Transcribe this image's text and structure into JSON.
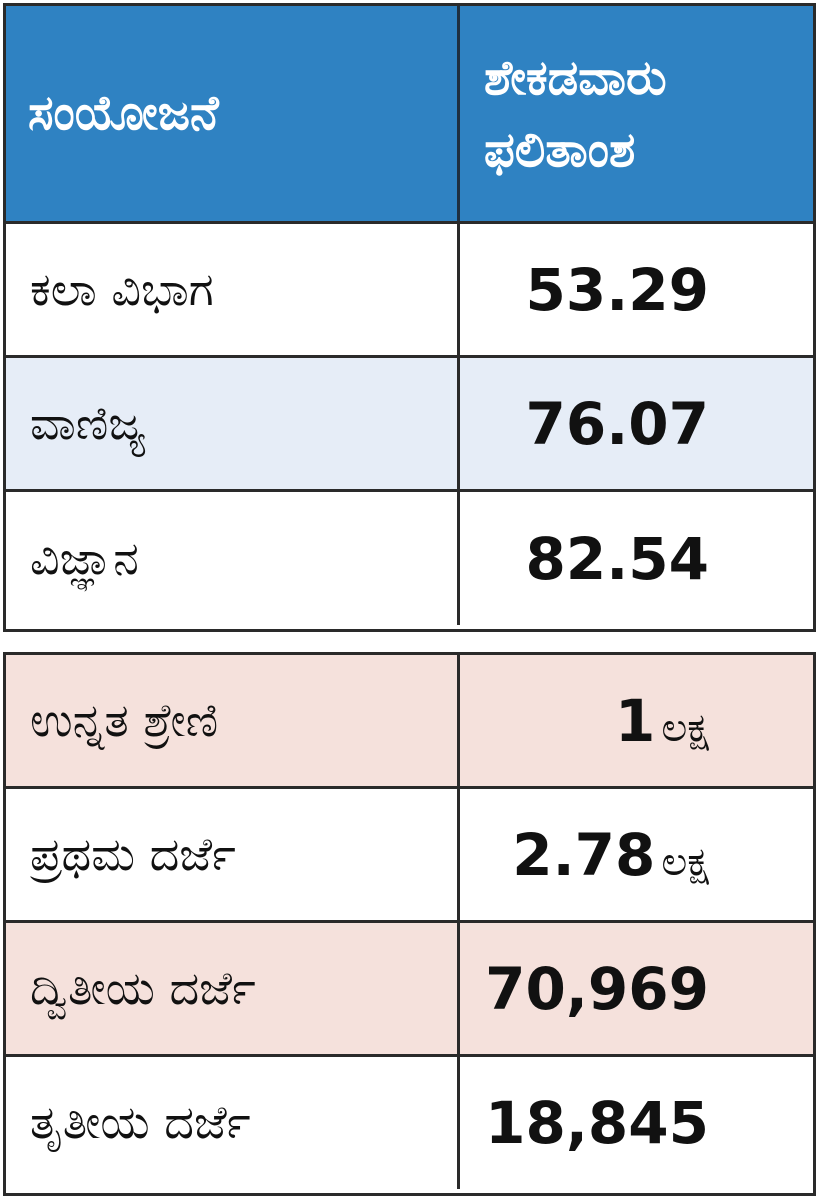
{
  "results_table": {
    "header": {
      "label_col": "ಸಂಯೋಜನೆ",
      "value_col": "ಶೇಕಡವಾರು\nಫಲಿತಾಂಶ"
    },
    "rows": [
      {
        "label": "ಕಲಾ ವಿಭಾಗ",
        "value": "53.29"
      },
      {
        "label": "ವಾಣಿಜ್ಯ",
        "value": "76.07"
      },
      {
        "label": "ವಿಜ್ಞಾನ",
        "value": "82.54"
      }
    ]
  },
  "grades_table": {
    "rows": [
      {
        "label": "ಉನ್ನತ ಶ್ರೇಣಿ",
        "value": "1",
        "unit": "ಲಕ್ಷ"
      },
      {
        "label": "ಪ್ರಥಮ ದರ್ಜೆ",
        "value": "2.78",
        "unit": "ಲಕ್ಷ"
      },
      {
        "label": "ದ್ವಿತೀಯ ದರ್ಜೆ",
        "value": "70,969"
      },
      {
        "label": "ತೃತೀಯ ದರ್ಜೆ",
        "value": "18,845"
      }
    ]
  },
  "colors": {
    "header_blue": "#2f82c2",
    "row_light_blue": "#e6edf7",
    "row_pink": "#f5e1dc",
    "border": "#2a2a2a"
  }
}
